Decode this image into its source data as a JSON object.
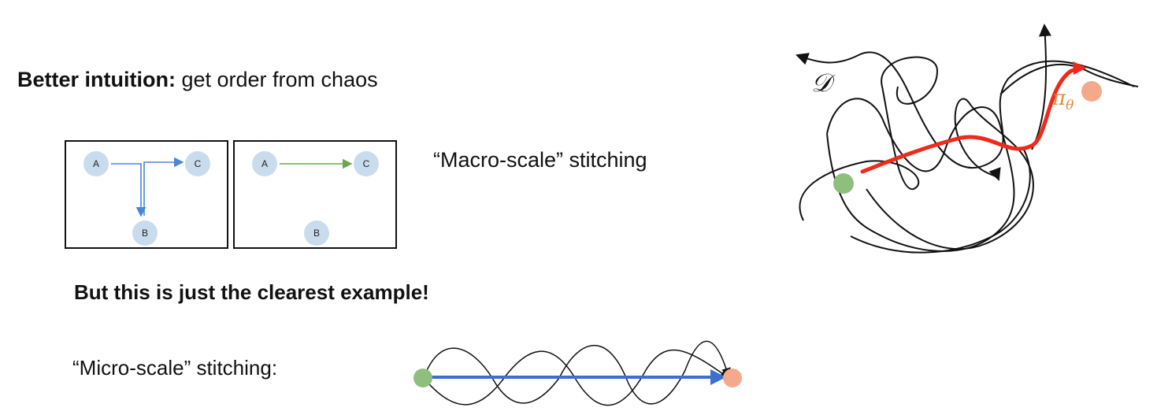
{
  "slide": {
    "heading_bold": "Better intuition:",
    "heading_rest": " get order from chaos",
    "macro_label": "“Macro-scale” stitching",
    "clearest": "But this is just the clearest example!",
    "micro_label": "“Micro-scale” stitching:"
  },
  "panels": {
    "left": {
      "node_a": "A",
      "node_b": "B",
      "node_c": "C"
    },
    "right": {
      "node_a": "A",
      "node_b": "B",
      "node_c": "C"
    }
  },
  "figure": {
    "dataset_symbol": "𝒟",
    "policy_symbol": "π",
    "policy_subscript": "θ"
  },
  "colors": {
    "node_fill": "#c9dcee",
    "blue_arrow": "#4a86d8",
    "green_arrow": "#6aa84f",
    "start_node": "#8fbf7f",
    "goal_node": "#f4a98a",
    "policy_path": "#ee2a1b",
    "policy_label": "#e08a3c"
  }
}
